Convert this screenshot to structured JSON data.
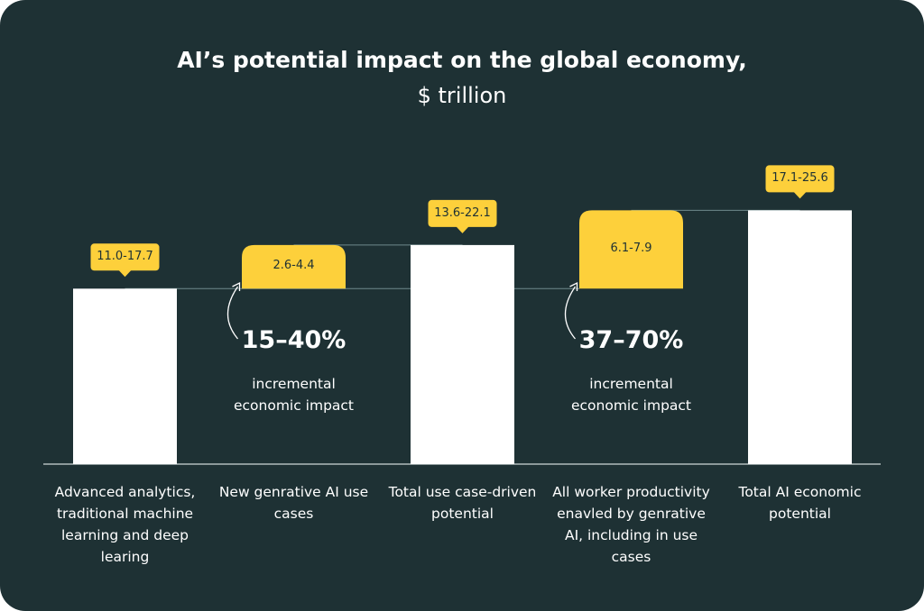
{
  "chart_data": {
    "type": "waterfall",
    "title": "AI’s potential impact on the global economy,",
    "subtitle": "$ trillion",
    "categories": [
      "Advanced analytics, traditional machine learning and deep learing",
      "New genrative AI use cases",
      "Total use case-driven potential",
      "All worker productivity enavled by genrative AI, including in use cases",
      "Total AI economic potential"
    ],
    "low": [
      11.0,
      2.6,
      13.6,
      6.1,
      17.1
    ],
    "high": [
      17.7,
      4.4,
      22.1,
      7.9,
      25.6
    ],
    "value_labels": [
      "11.0-17.7",
      "2.6-4.4",
      "13.6-22.1",
      "6.1-7.9",
      "17.1-25.6"
    ],
    "measure": [
      "total",
      "increment",
      "total",
      "increment",
      "total"
    ],
    "total_color": "#ffffff",
    "increment_color": "#fdd03b",
    "annotations": [
      {
        "category": 1,
        "text": "15–40%",
        "note": "incremental economic impact"
      },
      {
        "category": 3,
        "text": "37–70%",
        "note": "incremental economic impact"
      }
    ]
  }
}
